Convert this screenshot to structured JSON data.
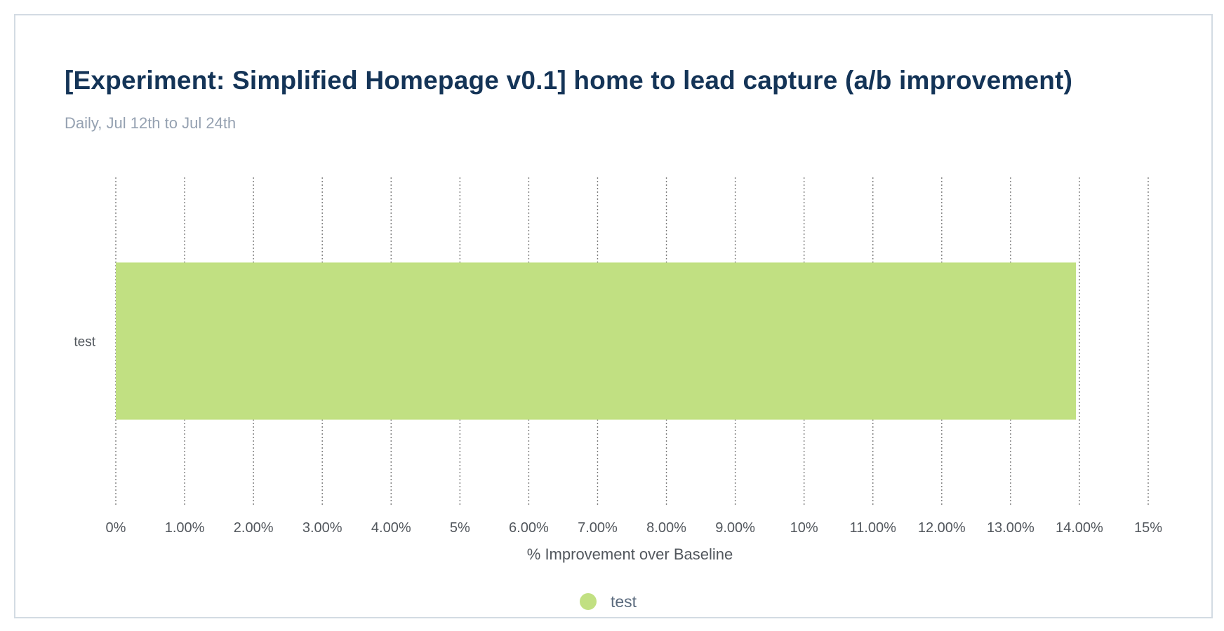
{
  "chart_data": {
    "type": "bar",
    "orientation": "horizontal",
    "title": "[Experiment: Simplified Homepage v0.1] home to lead capture (a/b improvement)",
    "subtitle": "Daily, Jul 12th to Jul 24th",
    "categories": [
      "test"
    ],
    "series": [
      {
        "name": "test",
        "values": [
          13.95
        ],
        "color": "#c1e082"
      }
    ],
    "xlabel": "% Improvement over Baseline",
    "ylabel": "",
    "xlim": [
      0,
      15
    ],
    "x_ticks": [
      0,
      1,
      2,
      3,
      4,
      5,
      6,
      7,
      8,
      9,
      10,
      11,
      12,
      13,
      14,
      15
    ],
    "x_tick_labels": [
      "0%",
      "1.00%",
      "2.00%",
      "3.00%",
      "4.00%",
      "5%",
      "6.00%",
      "7.00%",
      "8.00%",
      "9.00%",
      "10%",
      "11.00%",
      "12.00%",
      "13.00%",
      "14.00%",
      "15%"
    ],
    "grid": true,
    "grid_style": "dotted vertical",
    "legend_position": "bottom-center",
    "legend": [
      {
        "label": "test",
        "color": "#c1e082"
      }
    ]
  },
  "colors": {
    "title": "#143457",
    "subtitle": "#95a1b1",
    "axis_text": "#52575d",
    "grid": "#7d7d7d",
    "card_border": "#d3dbe3"
  }
}
